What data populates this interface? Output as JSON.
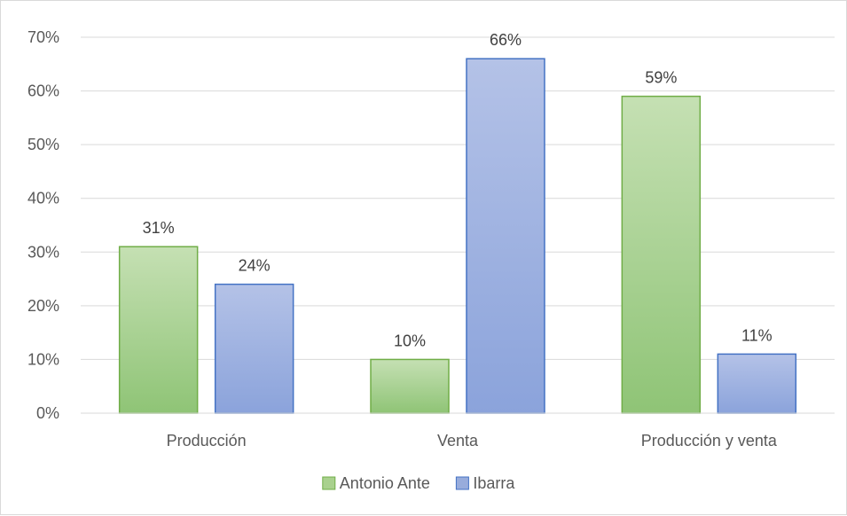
{
  "chart_data": {
    "type": "bar",
    "categories": [
      "Producción",
      "Venta",
      "Producción y venta"
    ],
    "series": [
      {
        "name": "Antonio Ante",
        "values": [
          31,
          10,
          59
        ],
        "labels": [
          "31%",
          "10%",
          "59%"
        ],
        "color": "#a9d18e",
        "border": "#70ad47"
      },
      {
        "name": "Ibarra",
        "values": [
          24,
          66,
          11
        ],
        "labels": [
          "24%",
          "66%",
          "11%"
        ],
        "color": "#98acdc",
        "border": "#4472c4"
      }
    ],
    "y_ticks": [
      "0%",
      "10%",
      "20%",
      "30%",
      "40%",
      "50%",
      "60%",
      "70%"
    ],
    "ylim": [
      0,
      70
    ],
    "grid": true,
    "legend_position": "bottom",
    "title": "",
    "xlabel": "",
    "ylabel": ""
  }
}
